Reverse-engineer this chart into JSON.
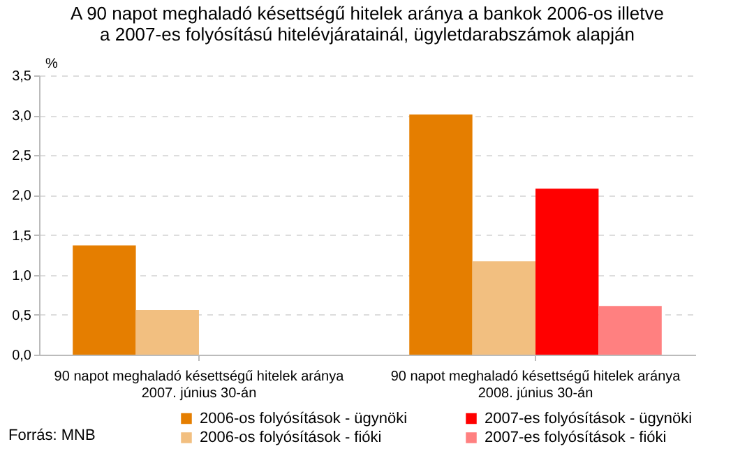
{
  "chart_data": {
    "type": "bar",
    "title": "A 90 napot meghaladó késettségű hitelek aránya a bankok 2006-os illetve\na 2007-es folyósítású hitelévjáratainál, ügyletdarabszámok alapján",
    "ylabel": "%",
    "categories": [
      "90 napot meghaladó késettségű hitelek aránya\n2007. június 30-án",
      "90 napot meghaladó késettségű hitelek aránya\n2008. június 30-án"
    ],
    "series": [
      {
        "name": "2006-os folyósítások - ügynöki",
        "color": "#e57e00",
        "values": [
          1.37,
          3.01
        ]
      },
      {
        "name": "2006-os folyósítások - fióki",
        "color": "#f2bf80",
        "values": [
          0.56,
          1.17
        ]
      },
      {
        "name": "2007-es folyósítások - ügynöki",
        "color": "#ff0000",
        "values": [
          null,
          2.08
        ]
      },
      {
        "name": "2007-es folyósítások - fióki",
        "color": "#ff8080",
        "values": [
          null,
          0.61
        ]
      }
    ],
    "ylim": [
      0,
      3.5
    ],
    "yticks": [
      {
        "value": 0,
        "label": "0,0"
      },
      {
        "value": 0.5,
        "label": "0,5"
      },
      {
        "value": 1,
        "label": "1,0"
      },
      {
        "value": 1.5,
        "label": "1,5"
      },
      {
        "value": 2,
        "label": "2,0"
      },
      {
        "value": 2.5,
        "label": "2,5"
      },
      {
        "value": 3,
        "label": "3,0"
      },
      {
        "value": 3.5,
        "label": "3,5"
      }
    ],
    "grid": "y",
    "legend": "bottom",
    "annotations": [
      "Forrás: MNB"
    ]
  }
}
